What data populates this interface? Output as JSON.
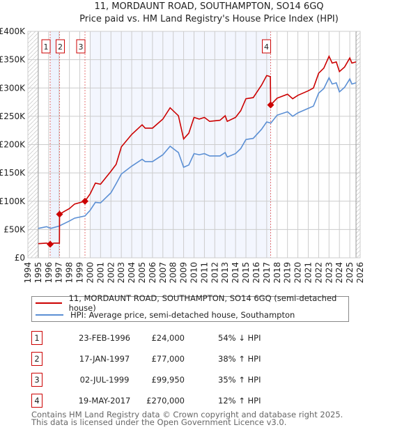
{
  "chart_data": {
    "type": "line",
    "title": "11, MORDAUNT ROAD, SOUTHAMPTON, SO14 6GQ",
    "subtitle": "Price paid vs. HM Land Registry's House Price Index (HPI)",
    "xlim": [
      1994,
      2026
    ],
    "ylim": [
      0,
      400000
    ],
    "grid": true,
    "x_ticks": [
      "1994",
      "1995",
      "1996",
      "1997",
      "1998",
      "1999",
      "2000",
      "2001",
      "2002",
      "2003",
      "2004",
      "2005",
      "2006",
      "2007",
      "2008",
      "2009",
      "2010",
      "2011",
      "2012",
      "2013",
      "2014",
      "2015",
      "2016",
      "2017",
      "2018",
      "2019",
      "2020",
      "2021",
      "2022",
      "2023",
      "2024",
      "2025",
      "2026"
    ],
    "y_ticks": [
      {
        "v": 0,
        "label": "£0"
      },
      {
        "v": 50000,
        "label": "£50K"
      },
      {
        "v": 100000,
        "label": "£100K"
      },
      {
        "v": 150000,
        "label": "£150K"
      },
      {
        "v": 200000,
        "label": "£200K"
      },
      {
        "v": 250000,
        "label": "£250K"
      },
      {
        "v": 300000,
        "label": "£300K"
      },
      {
        "v": 350000,
        "label": "£350K"
      },
      {
        "v": 400000,
        "label": "£400K"
      }
    ],
    "series": [
      {
        "name": "11, MORDAUNT ROAD, SOUTHAMPTON, SO14 6GQ (semi-detached house)",
        "color": "#cc0000",
        "x": [
          1995,
          1995.8,
          1996.15,
          1996.5,
          1997.04,
          1997.05,
          1997.5,
          1998,
          1998.5,
          1999.5,
          2000,
          2000.5,
          2001,
          2002,
          2002.5,
          2003,
          2004,
          2005,
          2005.3,
          2006,
          2007,
          2007.7,
          2008.5,
          2009,
          2009.5,
          2010,
          2010.5,
          2011,
          2011.5,
          2012.5,
          2013,
          2013.2,
          2014,
          2014.5,
          2015,
          2015.7,
          2016.5,
          2017,
          2017.35,
          2017.38,
          2018,
          2019,
          2019.5,
          2020,
          2021,
          2021.5,
          2022,
          2022.5,
          2023,
          2023.3,
          2023.7,
          2024,
          2024.5,
          2025,
          2025.2,
          2025.6
        ],
        "y": [
          25000,
          26000,
          24000,
          26000,
          26000,
          77000,
          82000,
          87000,
          95000,
          99950,
          113000,
          132000,
          130000,
          153000,
          165000,
          196000,
          218000,
          235000,
          229000,
          229000,
          245000,
          265000,
          251000,
          210000,
          220000,
          248000,
          245000,
          248000,
          241000,
          243000,
          251000,
          241000,
          248000,
          260000,
          281000,
          283000,
          305000,
          322000,
          320000,
          270000,
          282000,
          289000,
          281000,
          287000,
          295000,
          300000,
          326000,
          335000,
          356000,
          344000,
          346000,
          329000,
          337000,
          353000,
          344000,
          346000
        ]
      },
      {
        "name": "HPI: Average price, semi-detached house, Southampton",
        "color": "#5b8fd4",
        "x": [
          1995,
          1995.8,
          1996.2,
          1997,
          1998,
          1998.5,
          1999.5,
          2000,
          2000.5,
          2001,
          2002,
          2002.5,
          2003,
          2004,
          2005,
          2005.3,
          2006,
          2007,
          2007.7,
          2008.5,
          2009,
          2009.5,
          2010,
          2010.5,
          2011,
          2011.5,
          2012.5,
          2013,
          2013.2,
          2014,
          2014.5,
          2015,
          2015.7,
          2016.5,
          2017,
          2017.4,
          2018,
          2019,
          2019.5,
          2020,
          2021,
          2021.5,
          2022,
          2022.5,
          2023,
          2023.3,
          2023.7,
          2024,
          2024.5,
          2025,
          2025.2,
          2025.6
        ],
        "y": [
          52000,
          55000,
          52000,
          56000,
          65000,
          70000,
          74000,
          84000,
          98000,
          97000,
          115000,
          131000,
          148000,
          162000,
          174000,
          170000,
          170000,
          182000,
          197000,
          186000,
          160000,
          164000,
          184000,
          182000,
          184000,
          180000,
          180000,
          186000,
          178000,
          184000,
          193000,
          209000,
          211000,
          227000,
          240000,
          238000,
          252000,
          258000,
          250000,
          256000,
          264000,
          268000,
          291000,
          299000,
          318000,
          307000,
          309000,
          293000,
          301000,
          316000,
          307000,
          309000
        ]
      }
    ],
    "sales": [
      {
        "id": "1",
        "x": 1996.15,
        "y": 24000
      },
      {
        "id": "2",
        "x": 1997.05,
        "y": 77000
      },
      {
        "id": "3",
        "x": 1999.5,
        "y": 99950
      },
      {
        "id": "4",
        "x": 2017.38,
        "y": 270000
      }
    ]
  },
  "legend": {
    "property": "11, MORDAUNT ROAD, SOUTHAMPTON, SO14 6GQ (semi-detached house)",
    "hpi": "HPI: Average price, semi-detached house, Southampton"
  },
  "transactions": [
    {
      "num": "1",
      "date": "23-FEB-1996",
      "price": "£24,000",
      "hpi": "54% ↓ HPI"
    },
    {
      "num": "2",
      "date": "17-JAN-1997",
      "price": "£77,000",
      "hpi": "38% ↑ HPI"
    },
    {
      "num": "3",
      "date": "02-JUL-1999",
      "price": "£99,950",
      "hpi": "35% ↑ HPI"
    },
    {
      "num": "4",
      "date": "19-MAY-2017",
      "price": "£270,000",
      "hpi": "12% ↑ HPI"
    }
  ],
  "footer": {
    "line1": "Contains HM Land Registry data © Crown copyright and database right 2025.",
    "line2": "This data is licensed under the Open Government Licence v3.0."
  }
}
